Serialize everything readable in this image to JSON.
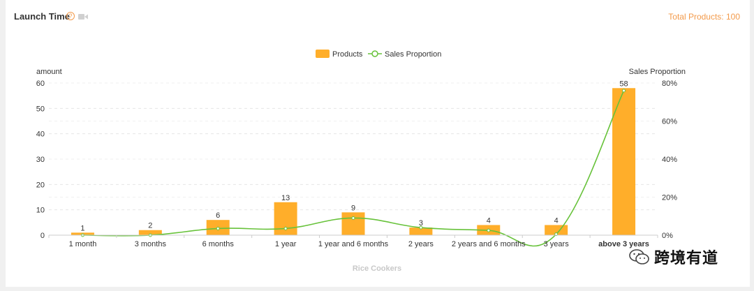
{
  "header": {
    "title": "Launch Time",
    "help_glyph": "?",
    "total_products": "Total Products: 100"
  },
  "watermark": {
    "text": "跨境有道"
  },
  "colors": {
    "bar": "#FFAE2A",
    "line": "#67C23A",
    "accent": "#f39a4a"
  },
  "chart_data": {
    "type": "bar",
    "categories": [
      "1 month",
      "3 months",
      "6 months",
      "1 year",
      "1 year and 6 months",
      "2 years",
      "2 years and 6 months",
      "3 years",
      "above 3 years"
    ],
    "series": [
      {
        "name": "Products",
        "type": "bar",
        "axis": "left",
        "values": [
          1,
          2,
          6,
          13,
          9,
          3,
          4,
          4,
          58
        ]
      },
      {
        "name": "Sales Proportion",
        "type": "line",
        "axis": "right",
        "smooth": true,
        "values": [
          0.0,
          0.0,
          3.5,
          3.5,
          9.0,
          4.0,
          2.5,
          0.5,
          76
        ]
      }
    ],
    "xlabel": "Rice Cookers",
    "ylabel_left": "amount",
    "ylabel_right": "Sales Proportion",
    "ylim_left": [
      0,
      60
    ],
    "ylim_right": [
      0,
      80
    ],
    "yticks_left": [
      "0",
      "10",
      "20",
      "30",
      "40",
      "50",
      "60"
    ],
    "yticks_right": [
      "0%",
      "20%",
      "40%",
      "60%",
      "80%"
    ],
    "legend": {
      "placement": "top-center",
      "items": [
        "Products",
        "Sales Proportion"
      ]
    },
    "grid": true
  }
}
